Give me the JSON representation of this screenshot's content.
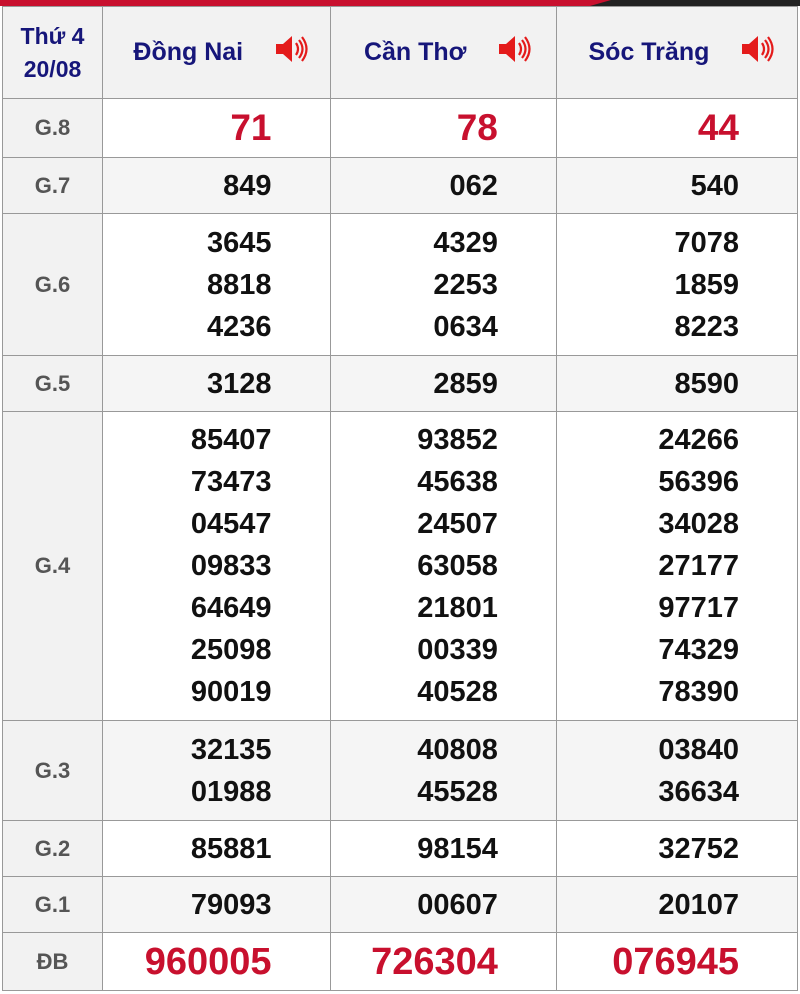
{
  "header": {
    "day": "Thứ 4",
    "date": "20/08",
    "provinces": [
      "Đồng Nai",
      "Cần Thơ",
      "Sóc Trăng"
    ],
    "speaker_icon": "speaker-icon",
    "accent": "#c8102e"
  },
  "rows": [
    {
      "label": "G.8",
      "values": [
        [
          "71"
        ],
        [
          "78"
        ],
        [
          "44"
        ]
      ]
    },
    {
      "label": "G.7",
      "values": [
        [
          "849"
        ],
        [
          "062"
        ],
        [
          "540"
        ]
      ]
    },
    {
      "label": "G.6",
      "values": [
        [
          "3645",
          "8818",
          "4236"
        ],
        [
          "4329",
          "2253",
          "0634"
        ],
        [
          "7078",
          "1859",
          "8223"
        ]
      ]
    },
    {
      "label": "G.5",
      "values": [
        [
          "3128"
        ],
        [
          "2859"
        ],
        [
          "8590"
        ]
      ]
    },
    {
      "label": "G.4",
      "values": [
        [
          "85407",
          "73473",
          "04547",
          "09833",
          "64649",
          "25098",
          "90019"
        ],
        [
          "93852",
          "45638",
          "24507",
          "63058",
          "21801",
          "00339",
          "40528"
        ],
        [
          "24266",
          "56396",
          "34028",
          "27177",
          "97717",
          "74329",
          "78390"
        ]
      ]
    },
    {
      "label": "G.3",
      "values": [
        [
          "32135",
          "01988"
        ],
        [
          "40808",
          "45528"
        ],
        [
          "03840",
          "36634"
        ]
      ]
    },
    {
      "label": "G.2",
      "values": [
        [
          "85881"
        ],
        [
          "98154"
        ],
        [
          "32752"
        ]
      ]
    },
    {
      "label": "G.1",
      "values": [
        [
          "79093"
        ],
        [
          "00607"
        ],
        [
          "20107"
        ]
      ]
    },
    {
      "label": "ĐB",
      "values": [
        [
          "960005"
        ],
        [
          "726304"
        ],
        [
          "076945"
        ]
      ]
    }
  ]
}
